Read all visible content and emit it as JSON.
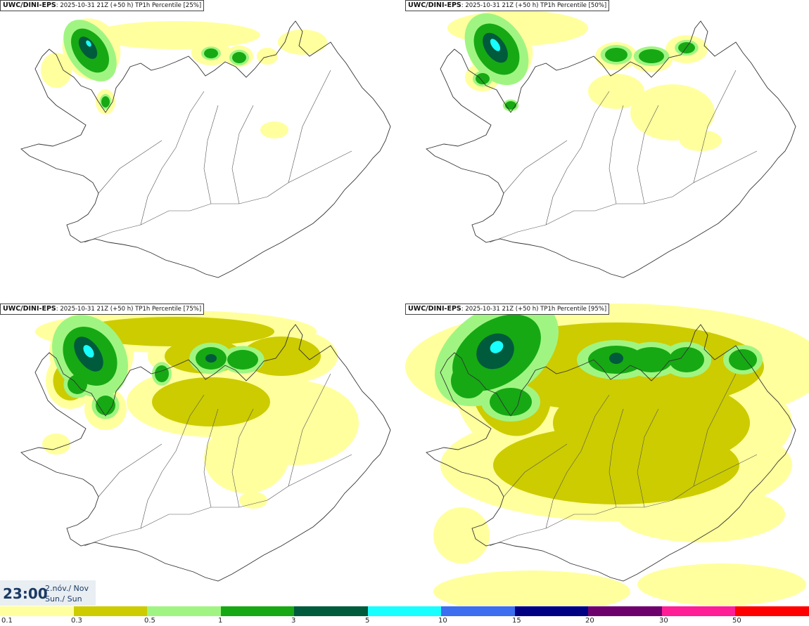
{
  "panels": [
    {
      "source": "UWC/DINI-EPS",
      "run": ": 2025-10-31 21Z (+50 h)",
      "field": " TP1h Percentile [25%]"
    },
    {
      "source": "UWC/DINI-EPS",
      "run": ": 2025-10-31 21Z (+50 h)",
      "field": " TP1h Percentile [50%]"
    },
    {
      "source": "UWC/DINI-EPS",
      "run": ": 2025-10-31 21Z (+50 h)",
      "field": " TP1h Percentile [75%]"
    },
    {
      "source": "UWC/DINI-EPS",
      "run": ": 2025-10-31 21Z (+50 h)",
      "field": " TP1h Percentile [95%]"
    }
  ],
  "valid_time": {
    "clock": "23:00",
    "date_line1": "2.nóv./ Nov",
    "date_line2": "Sun./ Sun"
  },
  "colorbar": {
    "colors": [
      "#ffff9e",
      "#cccc00",
      "#a0f582",
      "#16a914",
      "#005a3c",
      "#18ffff",
      "#3c6ef0",
      "#000082",
      "#6e006e",
      "#ff1e96",
      "#ff0000"
    ],
    "labels": [
      "0.1",
      "0.3",
      "0.5",
      "1",
      "3",
      "5",
      "10",
      "15",
      "20",
      "30",
      "50"
    ]
  }
}
